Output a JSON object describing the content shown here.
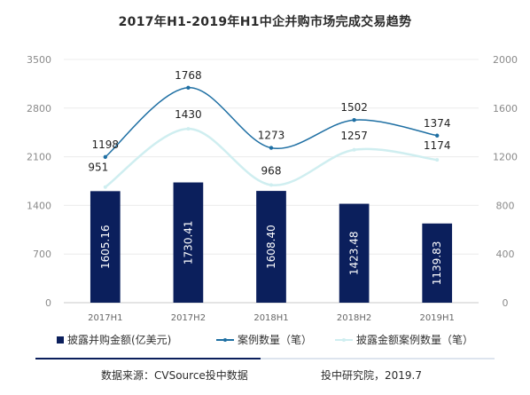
{
  "chart_data": {
    "type": "bar",
    "title": "2017年H1-2019年H1中企并购市场完成交易趋势",
    "categories": [
      "2017H1",
      "2017H2",
      "2018H1",
      "2018H2",
      "2019H1"
    ],
    "left_ticks": [
      "0",
      "700",
      "1400",
      "2100",
      "2800",
      "3500"
    ],
    "right_ticks": [
      "0",
      "400",
      "800",
      "1200",
      "1600",
      "2000"
    ],
    "ylim_left": [
      0,
      3500
    ],
    "ylim_right": [
      0,
      2000
    ],
    "grid": true,
    "legend_position": "bottom",
    "series": [
      {
        "name": "披露并购金额(亿美元)",
        "type": "bar",
        "axis": "left",
        "color": "#0b1f5c",
        "values": [
          1605.16,
          1730.41,
          1608.4,
          1423.48,
          1139.83
        ],
        "labels": [
          "1605.16",
          "1730.41",
          "1608.40",
          "1423.48",
          "1139.83"
        ]
      },
      {
        "name": "案例数量（笔）",
        "type": "line",
        "axis": "right",
        "color": "#1e6fa3",
        "values": [
          1198,
          1768,
          1273,
          1502,
          1374
        ],
        "labels": [
          "1198",
          "1768",
          "1273",
          "1502",
          "1374"
        ]
      },
      {
        "name": "披露金额案例数量（笔）",
        "type": "line",
        "axis": "right",
        "color": "#cfeef0",
        "values": [
          951,
          1430,
          968,
          1257,
          1174
        ],
        "labels": [
          "951",
          "1430",
          "968",
          "1257",
          "1174"
        ]
      }
    ]
  },
  "footer": {
    "source": "数据来源：CVSource投中数据",
    "brand": "投中研究院，2019.7",
    "accent_color": "#0b1f5c"
  }
}
